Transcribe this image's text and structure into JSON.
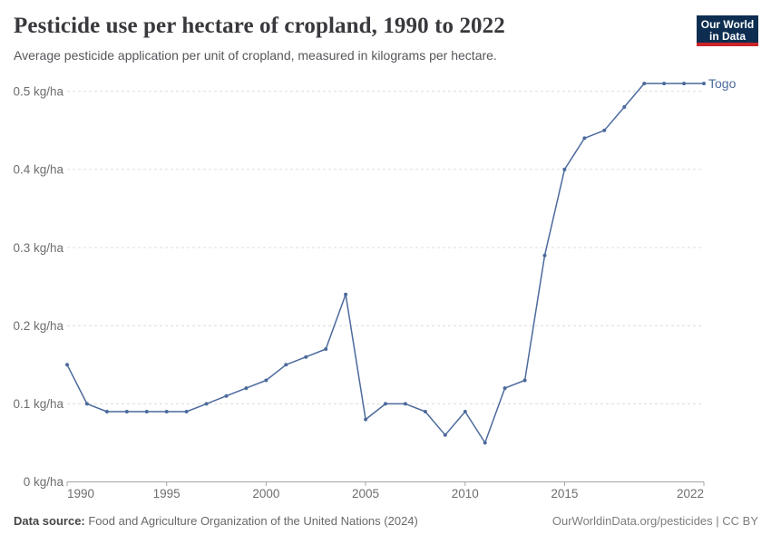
{
  "header": {
    "title": "Pesticide use per hectare of cropland, 1990 to 2022",
    "subtitle": "Average pesticide application per unit of cropland, measured in kilograms per hectare.",
    "logo": {
      "line1": "Our World",
      "line2": "in Data",
      "bg_color": "#0d2e51",
      "accent_color": "#cb2429"
    }
  },
  "chart_data": {
    "type": "line",
    "title": "Pesticide use per hectare of cropland, 1990 to 2022",
    "subtitle": "Average pesticide application per unit of cropland, measured in kilograms per hectare.",
    "x": [
      1990,
      1991,
      1992,
      1993,
      1994,
      1995,
      1996,
      1997,
      1998,
      1999,
      2000,
      2001,
      2002,
      2003,
      2004,
      2005,
      2006,
      2007,
      2008,
      2009,
      2010,
      2011,
      2012,
      2013,
      2014,
      2015,
      2016,
      2017,
      2018,
      2019,
      2020,
      2021,
      2022
    ],
    "series": [
      {
        "name": "Togo",
        "color": "#4c6a9c",
        "values": [
          0.15,
          0.1,
          0.09,
          0.09,
          0.09,
          0.09,
          0.09,
          0.1,
          0.11,
          0.12,
          0.13,
          0.15,
          0.16,
          0.17,
          0.24,
          0.08,
          0.1,
          0.1,
          0.09,
          0.06,
          0.09,
          0.05,
          0.12,
          0.13,
          0.29,
          0.4,
          0.44,
          0.45,
          0.48,
          0.51,
          0.51,
          0.51,
          0.51
        ]
      }
    ],
    "xlabel": "",
    "ylabel": "kg/ha",
    "ylim": [
      0,
      0.5
    ],
    "yticks": [
      0,
      0.1,
      0.2,
      0.3,
      0.4,
      0.5
    ],
    "ytick_suffix": " kg/ha",
    "xticks": [
      1990,
      1995,
      2000,
      2005,
      2010,
      2015,
      2022
    ],
    "grid": "horizontal-dashed",
    "legend": "series-end-label",
    "colors": {
      "gridline": "#dcdcdc",
      "axis": "#a5a5a5",
      "tick_label": "#6e6e6e"
    }
  },
  "footer": {
    "source_label": "Data source:",
    "source_text": " Food and Agriculture Organization of the United Nations (2024)",
    "credit": "OurWorldinData.org/pesticides | CC BY"
  }
}
